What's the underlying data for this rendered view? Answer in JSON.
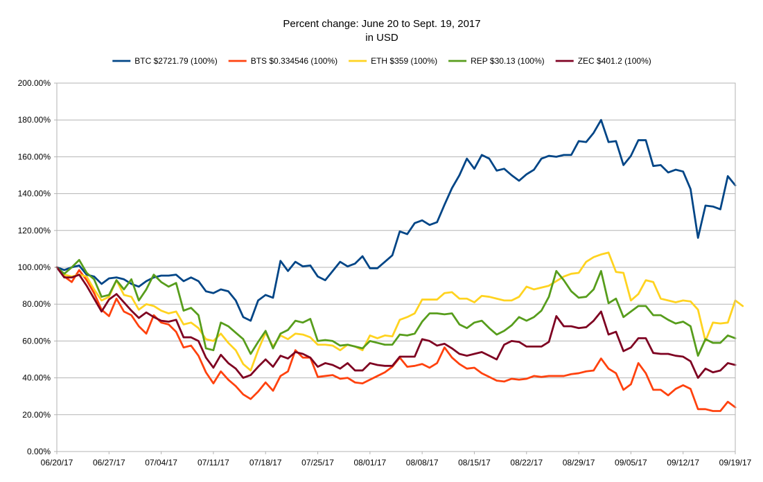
{
  "chart_data": {
    "type": "line",
    "title": "Percent change: June 20 to Sept. 19, 2017",
    "subtitle": "in USD",
    "xlabel": "",
    "ylabel": "",
    "ylim": [
      0,
      200
    ],
    "yticks": [
      "0.00%",
      "20.00%",
      "40.00%",
      "60.00%",
      "80.00%",
      "100.00%",
      "120.00%",
      "140.00%",
      "160.00%",
      "180.00%",
      "200.00%"
    ],
    "xticks": [
      "06/20/17",
      "06/27/17",
      "07/04/17",
      "07/11/17",
      "07/18/17",
      "07/25/17",
      "08/01/17",
      "08/08/17",
      "08/15/17",
      "08/22/17",
      "08/29/17",
      "09/05/17",
      "09/12/17",
      "09/19/17"
    ],
    "grid": "horizontal",
    "legend_position": "top",
    "series": [
      {
        "name": "BTC $2721.79 (100%)",
        "color": "#004586",
        "values": [
          100,
          98.5,
          100,
          101,
          96,
          95,
          91,
          94,
          94.5,
          93.5,
          91,
          89.5,
          92.5,
          94.5,
          95.5,
          95.5,
          96,
          92.5,
          94.5,
          92.5,
          87,
          86,
          88,
          87,
          82,
          73,
          71,
          82,
          85,
          83.5,
          103.5,
          98,
          103,
          100.5,
          101,
          95,
          93,
          98,
          103,
          100.5,
          102,
          106,
          99.5,
          99.5,
          103,
          106.5,
          119.5,
          118,
          124,
          125.5,
          123,
          124.5,
          134,
          143,
          150,
          159,
          153.5,
          161,
          159,
          152.5,
          153.5,
          150,
          147,
          150.5,
          153,
          159,
          160.5,
          160,
          161,
          161,
          168.5,
          168,
          173,
          180,
          168,
          168.5,
          155.5,
          160.5,
          169,
          169,
          155,
          155.5,
          151.5,
          153,
          152,
          142.5,
          116,
          133.5,
          133,
          131.5,
          149.5,
          144.5
        ]
      },
      {
        "name": "BTS $0.334546 (100%)",
        "color": "#ff420e",
        "values": [
          100,
          95,
          92,
          98.5,
          93,
          86,
          77,
          73.5,
          83,
          76,
          74,
          68,
          64,
          74,
          70,
          69,
          65,
          56.5,
          57.5,
          52,
          43,
          37,
          43.5,
          39,
          35.5,
          31,
          28.5,
          32.5,
          37.5,
          33,
          41,
          43.5,
          55,
          51,
          51,
          40.5,
          41,
          41.5,
          39.5,
          40,
          37.5,
          37,
          39,
          41,
          43,
          46,
          51,
          46,
          46.5,
          47.5,
          45.5,
          48,
          56.5,
          51,
          47.5,
          45,
          45.5,
          42.5,
          40.5,
          38.5,
          38,
          39.5,
          39,
          39.5,
          41,
          40.5,
          41,
          41,
          41,
          42,
          42.5,
          43.5,
          44,
          50.5,
          45,
          42.5,
          33.5,
          36.5,
          48,
          42.5,
          33.5,
          33.5,
          30.5,
          34,
          36,
          34,
          23,
          23,
          22,
          22,
          27,
          24
        ]
      },
      {
        "name": "ETH $359 (100%)",
        "color": "#ffd320",
        "values": [
          100,
          96,
          95,
          96,
          95,
          88,
          82,
          84,
          93,
          85,
          84,
          77,
          80,
          79,
          76.5,
          75,
          76,
          69,
          70,
          67,
          61,
          60,
          64,
          59,
          55,
          47.5,
          44,
          55,
          64.5,
          57,
          63,
          61,
          64,
          63.5,
          62,
          58,
          58,
          57.5,
          55,
          58,
          57,
          55,
          63,
          61.5,
          63,
          62.5,
          71.5,
          73,
          75,
          82.5,
          82.5,
          82.5,
          86,
          86.5,
          83,
          83,
          81,
          84.5,
          84,
          83,
          82,
          82,
          84,
          89.5,
          88,
          89,
          90,
          92.5,
          95,
          96.5,
          97,
          103,
          105.5,
          107,
          108,
          97.5,
          97,
          82,
          85.5,
          93,
          92,
          83,
          82,
          81,
          82,
          81.5,
          77,
          60,
          70,
          69.5,
          70,
          82,
          79
        ]
      },
      {
        "name": "REP $30.13 (100%)",
        "color": "#579d1c",
        "values": [
          100,
          96.5,
          100,
          104,
          97,
          93.5,
          84,
          85,
          93,
          88,
          93.5,
          82,
          88,
          96,
          92,
          89.5,
          91.5,
          76.5,
          78,
          74,
          56,
          55,
          70,
          68,
          64.5,
          61,
          53,
          59.5,
          65.5,
          56,
          64,
          66,
          71,
          70,
          72,
          60,
          60.5,
          60,
          57.5,
          58,
          57,
          56,
          60,
          59,
          58,
          58,
          63.5,
          63,
          64,
          70.5,
          75,
          75,
          74.5,
          75,
          69,
          67,
          70,
          71,
          67,
          63.5,
          65.5,
          68.5,
          73,
          71,
          73,
          76.5,
          84,
          98,
          93,
          87,
          83.5,
          84,
          88,
          98,
          80.5,
          83,
          73,
          76,
          79,
          79,
          74,
          74,
          71.5,
          69.5,
          70.5,
          68,
          52,
          61,
          59,
          59,
          63,
          61.5
        ]
      },
      {
        "name": "ZEC $401.2 (100%)",
        "color": "#7e0021",
        "values": [
          100,
          94.5,
          94.5,
          96,
          90,
          83,
          76,
          82.5,
          85.5,
          81,
          76.5,
          72.5,
          75.5,
          73,
          71,
          70.5,
          71.5,
          62,
          62,
          60,
          51,
          45.5,
          52.5,
          48,
          45,
          40,
          41.5,
          46,
          50,
          46,
          52,
          50.5,
          54,
          53,
          51,
          46,
          48,
          47,
          45,
          48,
          44,
          44,
          48,
          47,
          46.5,
          46.5,
          51.5,
          51.5,
          51.5,
          61,
          60,
          57.5,
          58.5,
          56,
          53,
          52,
          53,
          54,
          52,
          50,
          58,
          60,
          59.5,
          57,
          57,
          57,
          59.5,
          73.5,
          68,
          68,
          67,
          67.5,
          71,
          76,
          63.5,
          65,
          54.5,
          56.5,
          61.5,
          61.5,
          53.5,
          53,
          53,
          52,
          51.5,
          49,
          40,
          45,
          43,
          44,
          48,
          47
        ]
      }
    ]
  }
}
